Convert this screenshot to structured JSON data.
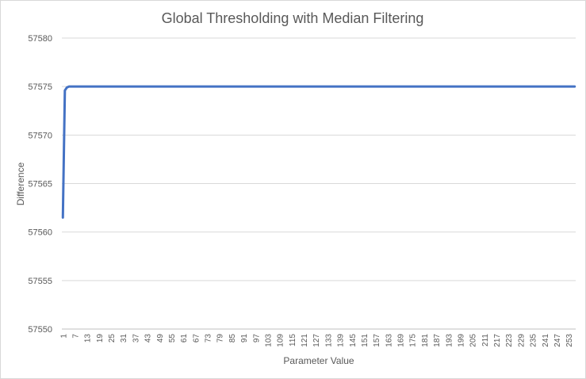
{
  "chart_data": {
    "type": "line",
    "title": "Global Thresholding with Median Filtering",
    "xlabel": "Parameter Value",
    "ylabel": "Difference",
    "x_start": 1,
    "x_end": 256,
    "x_tick_labels": [
      "1",
      "7",
      "13",
      "19",
      "25",
      "31",
      "37",
      "43",
      "49",
      "55",
      "61",
      "67",
      "73",
      "79",
      "85",
      "91",
      "97",
      "103",
      "109",
      "115",
      "121",
      "127",
      "133",
      "139",
      "145",
      "151",
      "157",
      "163",
      "169",
      "175",
      "181",
      "187",
      "193",
      "199",
      "205",
      "211",
      "217",
      "223",
      "229",
      "235",
      "241",
      "247",
      "253"
    ],
    "ylim": [
      57550,
      57580
    ],
    "y_ticks": [
      57550,
      57555,
      57560,
      57565,
      57570,
      57575,
      57580
    ],
    "grid": true,
    "legend": "none",
    "series": [
      {
        "color": "#4472c4",
        "points": [
          [
            1,
            57561.5
          ],
          [
            2,
            57574.6
          ],
          [
            3,
            57574.9
          ],
          [
            4,
            57575
          ],
          [
            5,
            57575
          ],
          [
            256,
            57575
          ]
        ]
      }
    ]
  }
}
